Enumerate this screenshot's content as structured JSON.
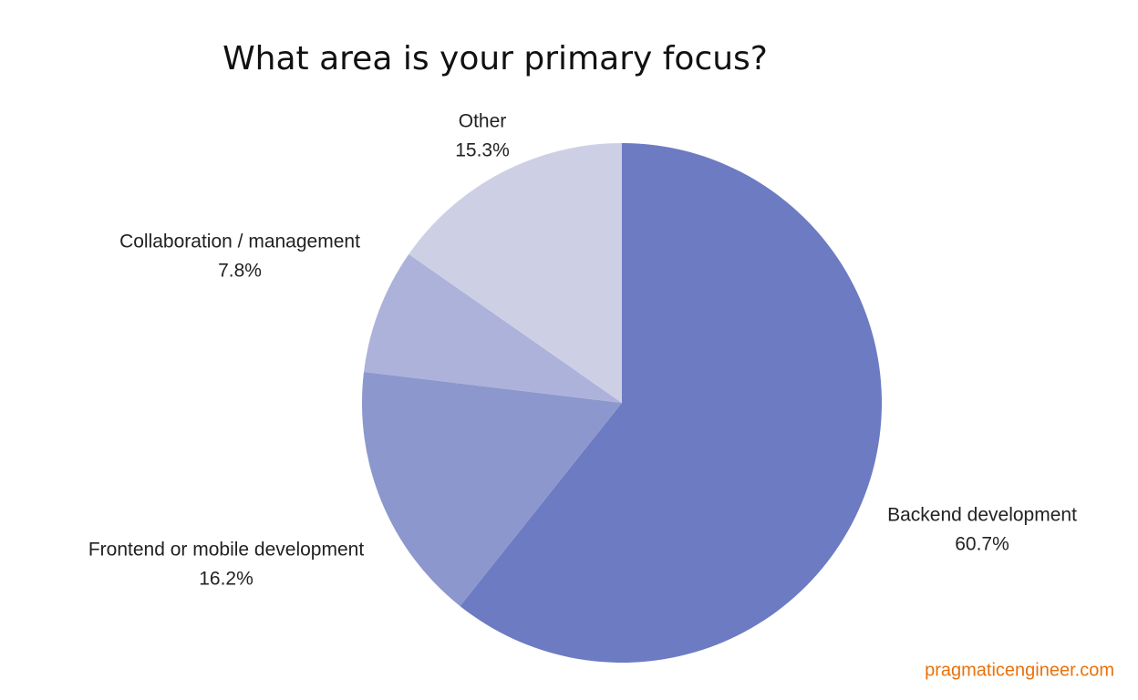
{
  "chart_data": {
    "type": "pie",
    "title": "What area is your primary focus?",
    "categories": [
      "Backend development",
      "Frontend or mobile development",
      "Collaboration / management",
      "Other"
    ],
    "values": [
      60.7,
      16.2,
      7.8,
      15.3
    ],
    "value_labels": [
      "60.7%",
      "16.2%",
      "7.8%",
      "15.3%"
    ],
    "colors": [
      "#6c7bc2",
      "#8c97cd",
      "#adb2da",
      "#cdd0e5"
    ],
    "source": "pragmaticengineer.com"
  }
}
